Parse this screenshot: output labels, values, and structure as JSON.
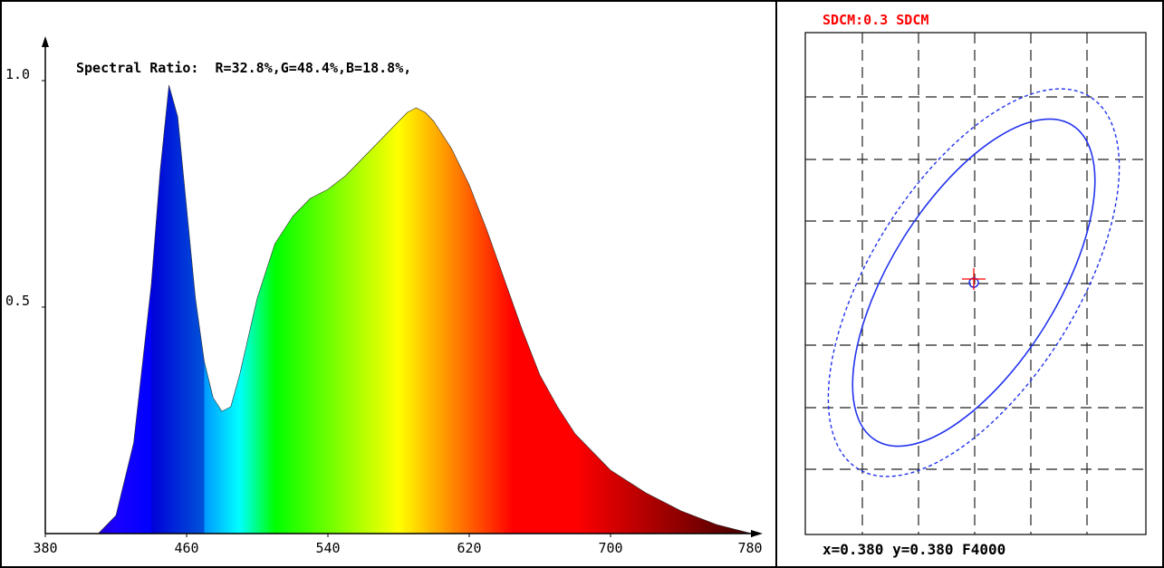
{
  "chart_data": [
    {
      "type": "area",
      "title": "Spectral Ratio:  R=32.8%,G=48.4%,B=18.8%,",
      "xlabel": "",
      "ylabel": "",
      "xlim": [
        380,
        780
      ],
      "ylim": [
        0,
        1.0
      ],
      "x_ticks": [
        380,
        460,
        540,
        620,
        700,
        780
      ],
      "y_ticks": [
        {
          "value": 0.5,
          "label": "0.5"
        },
        {
          "value": 1.0,
          "label": "1.0"
        }
      ],
      "fill": "wavelength-colored spectrum",
      "series": [
        {
          "x": [
            380,
            410,
            420,
            430,
            440,
            445,
            450,
            455,
            460,
            465,
            470,
            475,
            480,
            485,
            490,
            500,
            510,
            520,
            530,
            540,
            550,
            560,
            570,
            580,
            585,
            590,
            595,
            600,
            610,
            620,
            630,
            640,
            650,
            660,
            670,
            680,
            690,
            700,
            720,
            740,
            760,
            780
          ],
          "y": [
            0,
            0,
            0.04,
            0.2,
            0.55,
            0.8,
            0.99,
            0.92,
            0.72,
            0.52,
            0.38,
            0.3,
            0.27,
            0.28,
            0.35,
            0.52,
            0.64,
            0.7,
            0.74,
            0.76,
            0.79,
            0.83,
            0.87,
            0.91,
            0.93,
            0.94,
            0.93,
            0.91,
            0.85,
            0.77,
            0.67,
            0.56,
            0.45,
            0.35,
            0.28,
            0.22,
            0.18,
            0.14,
            0.09,
            0.05,
            0.02,
            0
          ]
        }
      ]
    },
    {
      "type": "scatter",
      "title": "SDCM:0.3 SDCM",
      "title_color": "#ff0000",
      "point_label": "x=0.380 y=0.380 F4000",
      "grid": true,
      "x": 0.38,
      "y": 0.38,
      "ellipses": [
        "solid",
        "dashed"
      ],
      "ellipse_color": "#2233ee",
      "marker_color": "#ff0000"
    }
  ]
}
